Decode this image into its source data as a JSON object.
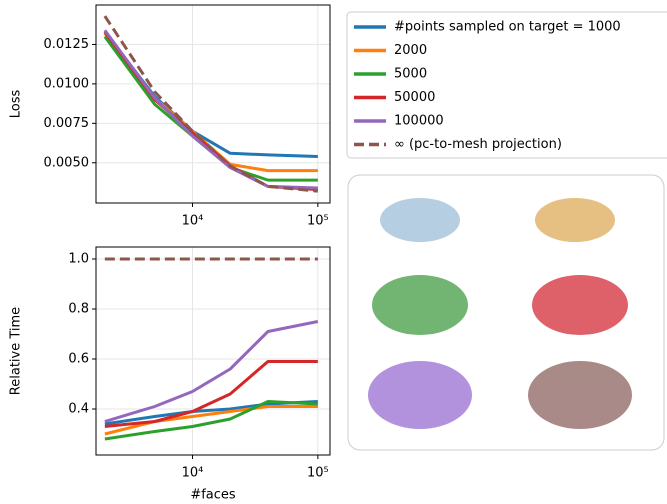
{
  "chart_data": [
    {
      "type": "line",
      "ylabel": "Loss",
      "xscale": "log",
      "grid": true,
      "legend": "outside right",
      "x": [
        2000,
        5000,
        10000,
        20000,
        40000,
        100000
      ],
      "xlim": [
        1700,
        125000
      ],
      "xticks": [
        {
          "value": 10000,
          "label": "10⁴"
        },
        {
          "value": 100000,
          "label": "10⁵"
        }
      ],
      "ylim": [
        0.00245,
        0.015
      ],
      "yticks": [
        {
          "value": 0.005,
          "label": "0.0050"
        },
        0.0075,
        {
          "value": 0.01,
          "label": "0.0100"
        },
        0.0125
      ],
      "series": [
        {
          "name": "#points sampled on target = 1000",
          "color": "#1f77b4",
          "values": [
            0.0133,
            0.0092,
            0.007,
            0.0056,
            0.0055,
            0.0054
          ]
        },
        {
          "name": "2000",
          "color": "#ff7f0e",
          "values": [
            0.0132,
            0.0091,
            0.007,
            0.0049,
            0.0045,
            0.0045
          ]
        },
        {
          "name": "5000",
          "color": "#2ca02c",
          "values": [
            0.013,
            0.0087,
            0.0067,
            0.0047,
            0.0039,
            0.0039
          ]
        },
        {
          "name": "50000",
          "color": "#d62728",
          "values": [
            0.0133,
            0.009,
            0.0069,
            0.0048,
            0.0035,
            0.0033
          ]
        },
        {
          "name": "100000",
          "color": "#9467bd",
          "values": [
            0.0134,
            0.0091,
            0.0067,
            0.0047,
            0.0035,
            0.0034
          ]
        },
        {
          "name": "∞ (pc-to-mesh projection)",
          "color": "#8c564b",
          "linestyle": "dashed",
          "values": [
            0.0143,
            0.0095,
            0.007,
            0.0048,
            0.0035,
            0.0032
          ]
        }
      ]
    },
    {
      "type": "line",
      "ylabel": "Relative Time",
      "xlabel": "#faces",
      "xscale": "log",
      "grid": true,
      "x": [
        2000,
        5000,
        10000,
        20000,
        40000,
        100000
      ],
      "xlim": [
        1700,
        125000
      ],
      "xticks": [
        {
          "value": 10000,
          "label": "10⁴"
        },
        {
          "value": 100000,
          "label": "10⁵"
        }
      ],
      "ylim": [
        0.216,
        1.048
      ],
      "yticks": [
        0.4,
        0.6,
        0.8,
        {
          "value": 1,
          "label": "1.0"
        }
      ],
      "series": [
        {
          "color": "#1f77b4",
          "values": [
            0.34,
            0.37,
            0.39,
            0.4,
            0.42,
            0.43
          ]
        },
        {
          "color": "#ff7f0e",
          "values": [
            0.3,
            0.35,
            0.37,
            0.39,
            0.41,
            0.41
          ]
        },
        {
          "color": "#2ca02c",
          "values": [
            0.28,
            0.31,
            0.33,
            0.36,
            0.43,
            0.42
          ]
        },
        {
          "color": "#d62728",
          "values": [
            0.33,
            0.35,
            0.39,
            0.46,
            0.59,
            0.59
          ]
        },
        {
          "color": "#9467bd",
          "values": [
            0.35,
            0.41,
            0.47,
            0.56,
            0.71,
            0.75
          ]
        },
        {
          "color": "#8c564b",
          "linestyle": "dashed",
          "values": [
            1,
            1,
            1,
            1,
            1,
            1
          ]
        }
      ]
    }
  ]
}
